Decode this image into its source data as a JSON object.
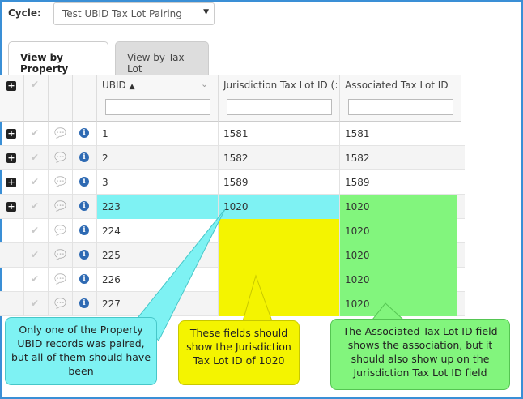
{
  "cycle": {
    "label": "Cycle:",
    "selected": "Test UBID Tax Lot Pairing"
  },
  "tabs": [
    {
      "label": "View by Property",
      "active": true
    },
    {
      "label": "View by Tax Lot",
      "active": false
    }
  ],
  "grid": {
    "columns": {
      "ubid": "UBID",
      "jurisdiction": "Jurisdiction Tax Lot ID (⨯..",
      "associated": "Associated Tax Lot ID"
    },
    "rows": [
      {
        "ubid": "1",
        "jurisdiction": "1581",
        "associated": "1581",
        "expandable": true
      },
      {
        "ubid": "2",
        "jurisdiction": "1582",
        "associated": "1582",
        "expandable": true
      },
      {
        "ubid": "3",
        "jurisdiction": "1589",
        "associated": "1589",
        "expandable": true
      },
      {
        "ubid": "223",
        "jurisdiction": "1020",
        "associated": "1020",
        "expandable": true
      },
      {
        "ubid": "224",
        "jurisdiction": "",
        "associated": "1020",
        "expandable": false
      },
      {
        "ubid": "225",
        "jurisdiction": "",
        "associated": "1020",
        "expandable": false
      },
      {
        "ubid": "226",
        "jurisdiction": "",
        "associated": "1020",
        "expandable": false
      },
      {
        "ubid": "227",
        "jurisdiction": "",
        "associated": "1020",
        "expandable": false
      }
    ]
  },
  "callouts": {
    "cyan": "Only one of the Property UBID records was paired, but all of them should have been",
    "yellow": "These fields should show the Jurisdiction Tax Lot ID of 1020",
    "green": "The Associated Tax Lot ID field shows the association, but it should also show up on the Jurisdiction Tax Lot ID field"
  },
  "colors": {
    "cyan": "#7ef2f3",
    "yellow": "#f4f400",
    "green": "#82f57d",
    "frame": "#3a8fd6"
  }
}
